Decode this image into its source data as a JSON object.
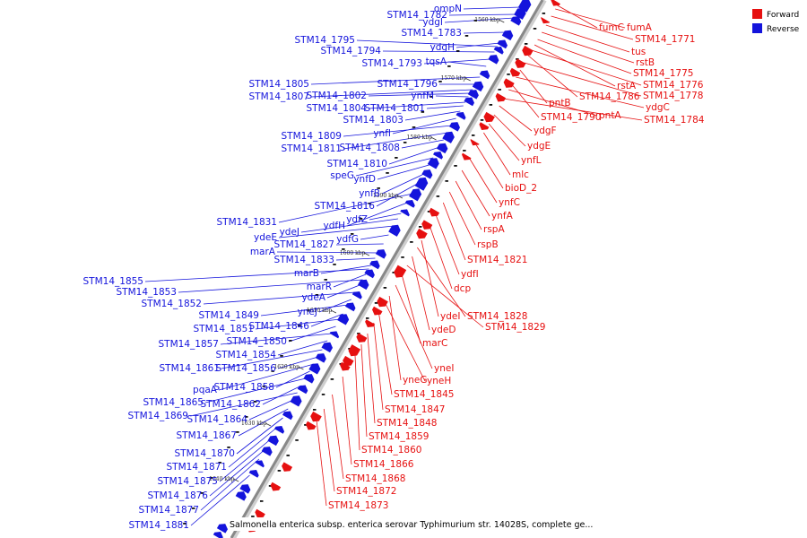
{
  "colors": {
    "forward": "#e61010",
    "reverse": "#1414dc",
    "backbone": "#888888"
  },
  "legend": [
    {
      "label": "Forward",
      "color": "#e61010"
    },
    {
      "label": "Reverse",
      "color": "#1414dc"
    }
  ],
  "caption": "Salmonella enterica subsp. enterica serovar Typhimurium str. 14028S, complete ge...",
  "kbp_ticks": [
    "1560 kbp",
    "1570 kbp",
    "1580 kbp",
    "1590 kbp",
    "1600 kbp",
    "1610 kbp",
    "1620 kbp",
    "1630 kbp",
    "1640 kbp"
  ],
  "reverse_labels": [
    "ompN",
    "STM14_1782",
    "ydgI",
    "STM14_1783",
    "ydgH",
    "STM14_1795",
    "STM14_1794",
    "STM14_1793",
    "tqsA",
    "STM14_1805",
    "STM14_1796",
    "STM14_1807",
    "STM14_1802",
    "ynfM",
    "STM14_1804",
    "STM14_1801",
    "STM14_1803",
    "ynfI",
    "STM14_1809",
    "STM14_1811",
    "STM14_1808",
    "STM14_1810",
    "speG",
    "ynfD",
    "ynfB",
    "STM14_1816",
    "STM14_1831",
    "ydfH",
    "ydfZ",
    "ydeJ",
    "ydeE",
    "ydfG",
    "STM14_1827",
    "marA",
    "STM14_1833",
    "marB",
    "STM14_1855",
    "marR",
    "STM14_1853",
    "ydeA",
    "STM14_1852",
    "yneJ",
    "STM14_1849",
    "STM14_1846",
    "STM14_1851",
    "STM14_1850",
    "STM14_1857",
    "STM14_1854",
    "STM14_1861",
    "STM14_1856",
    "pqaA",
    "STM14_1858",
    "STM14_1865",
    "STM14_1862",
    "STM14_1869",
    "STM14_1864",
    "STM14_1867",
    "STM14_1870",
    "STM14_1871",
    "STM14_1875",
    "STM14_1876",
    "STM14_1877",
    "STM14_1881"
  ],
  "forward_labels": [
    "fumC",
    "fumA",
    "STM14_1771",
    "tus",
    "rstB",
    "STM14_1775",
    "rstA",
    "STM14_1776",
    "STM14_1786",
    "STM14_1778",
    "pntB",
    "ydgC",
    "STM14_1790",
    "pntA",
    "STM14_1784",
    "ydgF",
    "ydgE",
    "ynfL",
    "mlc",
    "bioD_2",
    "ynfC",
    "ynfA",
    "rspA",
    "rspB",
    "STM14_1821",
    "ydfI",
    "dcp",
    "ydeI",
    "STM14_1828",
    "ydeD",
    "STM14_1829",
    "marC",
    "yneI",
    "yneG",
    "yneH",
    "STM14_1845",
    "STM14_1847",
    "STM14_1848",
    "STM14_1859",
    "STM14_1860",
    "STM14_1866",
    "STM14_1868",
    "STM14_1872",
    "STM14_1873"
  ]
}
